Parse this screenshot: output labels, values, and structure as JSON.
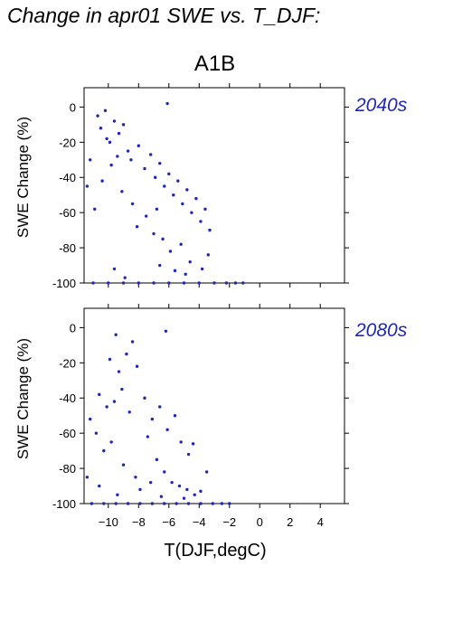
{
  "title": "Change in apr01 SWE vs. T_DJF:",
  "scenario": "A1B",
  "chart_data": [
    {
      "type": "scatter",
      "panel": "2040s",
      "xlabel": "T(DJF,degC)",
      "ylabel": "SWE Change (%)",
      "xlim": [
        -11.6,
        5.6
      ],
      "ylim": [
        -100,
        11
      ],
      "xticks": [
        -10,
        -8,
        -6,
        -4,
        -2,
        0,
        2,
        4
      ],
      "yticks": [
        0,
        -20,
        -40,
        -60,
        -80,
        -100
      ],
      "point_color": "#2027b0",
      "points": [
        [
          -10.7,
          -5
        ],
        [
          -10.5,
          -12
        ],
        [
          -10.2,
          -2
        ],
        [
          -9.9,
          -20
        ],
        [
          -9.6,
          -8
        ],
        [
          -9.3,
          -15
        ],
        [
          -9.0,
          -10
        ],
        [
          -8.7,
          -25
        ],
        [
          -10.1,
          -18
        ],
        [
          -9.4,
          -28
        ],
        [
          -9.8,
          -33
        ],
        [
          -8.5,
          -30
        ],
        [
          -8.0,
          -22
        ],
        [
          -7.6,
          -35
        ],
        [
          -7.2,
          -27
        ],
        [
          -6.9,
          -40
        ],
        [
          -6.6,
          -32
        ],
        [
          -6.3,
          -45
        ],
        [
          -6.0,
          -38
        ],
        [
          -5.7,
          -50
        ],
        [
          -5.4,
          -42
        ],
        [
          -5.1,
          -55
        ],
        [
          -4.8,
          -47
        ],
        [
          -4.5,
          -60
        ],
        [
          -4.2,
          -52
        ],
        [
          -3.9,
          -65
        ],
        [
          -3.6,
          -58
        ],
        [
          -3.3,
          -70
        ],
        [
          -6.1,
          2
        ],
        [
          -6.8,
          -58
        ],
        [
          -7.5,
          -62
        ],
        [
          -8.1,
          -68
        ],
        [
          -6.4,
          -75
        ],
        [
          -5.9,
          -82
        ],
        [
          -5.2,
          -78
        ],
        [
          -4.6,
          -88
        ],
        [
          -7.0,
          -72
        ],
        [
          -8.4,
          -55
        ],
        [
          -9.1,
          -48
        ],
        [
          -10.4,
          -42
        ],
        [
          -11.2,
          -30
        ],
        [
          -11.4,
          -45
        ],
        [
          -10.9,
          -58
        ],
        [
          -9.6,
          -92
        ],
        [
          -8.9,
          -97
        ],
        [
          -6.6,
          -90
        ],
        [
          -5.6,
          -93
        ],
        [
          -4.9,
          -95
        ],
        [
          -3.8,
          -92
        ],
        [
          -3.4,
          -84
        ],
        [
          -11.0,
          -100
        ],
        [
          -10.0,
          -100
        ],
        [
          -9.0,
          -100
        ],
        [
          -8.0,
          -100
        ],
        [
          -7.0,
          -100
        ],
        [
          -6.0,
          -100
        ],
        [
          -5.0,
          -100
        ],
        [
          -4.0,
          -100
        ],
        [
          -3.0,
          -100
        ],
        [
          -2.2,
          -100
        ],
        [
          -1.6,
          -100
        ],
        [
          -1.1,
          -100
        ]
      ]
    },
    {
      "type": "scatter",
      "panel": "2080s",
      "xlabel": "T(DJF,degC)",
      "ylabel": "SWE Change (%)",
      "xlim": [
        -11.6,
        5.6
      ],
      "ylim": [
        -100,
        11
      ],
      "xticks": [
        -10,
        -8,
        -6,
        -4,
        -2,
        0,
        2,
        4
      ],
      "yticks": [
        0,
        -20,
        -40,
        -60,
        -80,
        -100
      ],
      "point_color": "#2027b0",
      "points": [
        [
          -9.5,
          -4
        ],
        [
          -8.4,
          -8
        ],
        [
          -6.2,
          -2
        ],
        [
          -9.9,
          -18
        ],
        [
          -8.8,
          -15
        ],
        [
          -9.3,
          -25
        ],
        [
          -8.1,
          -22
        ],
        [
          -10.6,
          -38
        ],
        [
          -10.1,
          -45
        ],
        [
          -9.6,
          -42
        ],
        [
          -9.1,
          -35
        ],
        [
          -8.6,
          -48
        ],
        [
          -7.6,
          -40
        ],
        [
          -7.1,
          -52
        ],
        [
          -6.6,
          -45
        ],
        [
          -6.1,
          -58
        ],
        [
          -5.6,
          -50
        ],
        [
          -5.2,
          -65
        ],
        [
          -4.7,
          -72
        ],
        [
          -11.2,
          -52
        ],
        [
          -10.8,
          -60
        ],
        [
          -10.3,
          -70
        ],
        [
          -9.8,
          -65
        ],
        [
          -9.0,
          -78
        ],
        [
          -8.2,
          -85
        ],
        [
          -7.4,
          -62
        ],
        [
          -6.8,
          -75
        ],
        [
          -6.3,
          -82
        ],
        [
          -5.8,
          -88
        ],
        [
          -5.3,
          -90
        ],
        [
          -4.8,
          -92
        ],
        [
          -4.3,
          -95
        ],
        [
          -3.9,
          -93
        ],
        [
          -11.4,
          -85
        ],
        [
          -10.6,
          -90
        ],
        [
          -9.4,
          -95
        ],
        [
          -7.9,
          -92
        ],
        [
          -7.2,
          -88
        ],
        [
          -6.5,
          -96
        ],
        [
          -5.0,
          -97
        ],
        [
          -11.1,
          -100
        ],
        [
          -10.3,
          -100
        ],
        [
          -9.5,
          -100
        ],
        [
          -8.7,
          -100
        ],
        [
          -7.9,
          -100
        ],
        [
          -7.1,
          -100
        ],
        [
          -6.3,
          -100
        ],
        [
          -5.5,
          -100
        ],
        [
          -4.7,
          -100
        ],
        [
          -3.9,
          -100
        ],
        [
          -3.1,
          -100
        ],
        [
          -2.5,
          -100
        ],
        [
          -2.0,
          -100
        ],
        [
          -4.4,
          -66
        ],
        [
          -3.5,
          -82
        ]
      ]
    }
  ]
}
